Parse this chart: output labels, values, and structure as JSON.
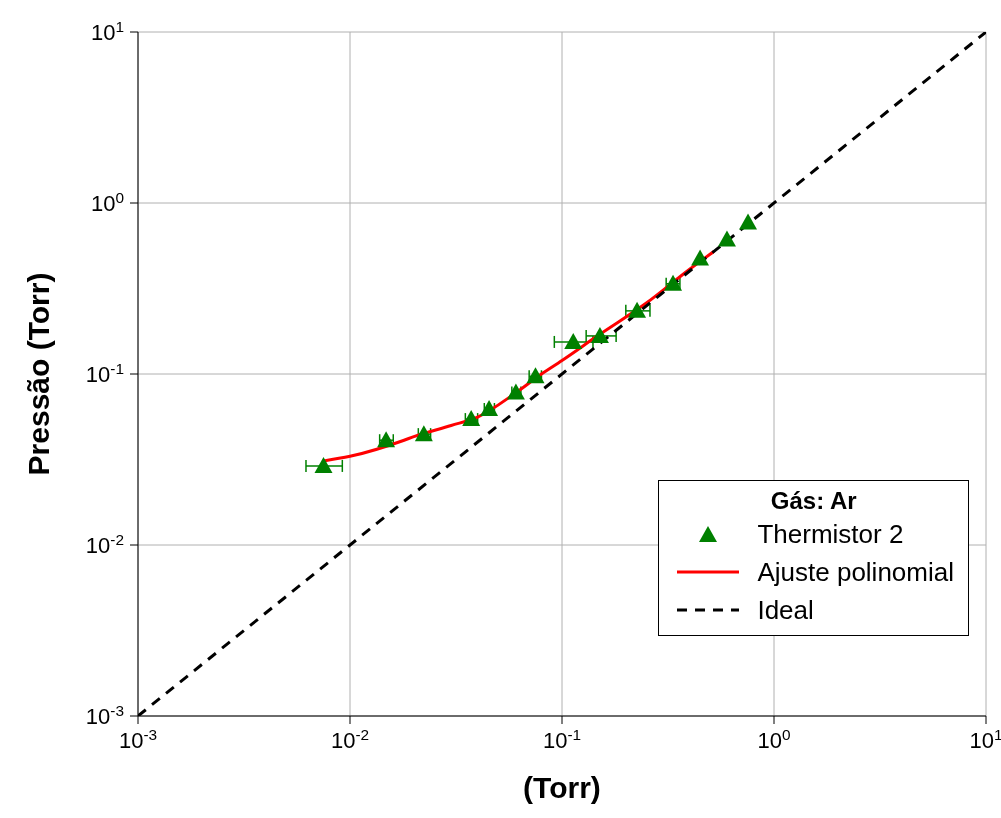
{
  "chart_data": {
    "type": "scatter",
    "xlabel": "(Torr)",
    "ylabel": "Pressão (Torr)",
    "legend_title": "Gás: Ar",
    "log": "xy",
    "grid": true,
    "legend": "bottom right",
    "xlim": [
      0.001,
      10
    ],
    "ylim": [
      0.001,
      10
    ],
    "xticks": [
      {
        "value": 0.001,
        "label": "10$^{-3}$"
      },
      {
        "value": 0.01,
        "label": "10$^{-2}$"
      },
      {
        "value": 0.1,
        "label": "10$^{-1}$"
      },
      {
        "value": 1,
        "label": "10$^{0}$"
      },
      {
        "value": 10,
        "label": "10$^{1}$"
      }
    ],
    "yticks": [
      {
        "value": 0.001,
        "label": "10$^{-3}$"
      },
      {
        "value": 0.01,
        "label": "10$^{-2}$"
      },
      {
        "value": 0.1,
        "label": "10$^{-1}$"
      },
      {
        "value": 1,
        "label": "10$^{0}$"
      },
      {
        "value": 10,
        "label": "10$^{1}$"
      }
    ],
    "series": [
      {
        "name": "Thermistor 2",
        "marker": "triangle",
        "color": "#008000",
        "x": [
          0.0075,
          0.0148,
          0.0223,
          0.0373,
          0.0453,
          0.0606,
          0.075,
          0.113,
          0.151,
          0.226,
          0.334,
          0.448,
          0.6,
          0.754
        ],
        "values": [
          0.029,
          0.041,
          0.0445,
          0.0545,
          0.0624,
          0.078,
          0.097,
          0.154,
          0.167,
          0.234,
          0.337,
          0.473,
          0.611,
          0.769
        ],
        "xerrors": [
          [
            0.0062,
            0.0092
          ],
          [
            0.0138,
            0.016
          ],
          [
            0.021,
            0.024
          ],
          [
            0.035,
            0.04
          ],
          [
            0.043,
            0.048
          ],
          [
            0.058,
            0.064
          ],
          [
            0.07,
            0.08
          ],
          [
            0.092,
            0.14
          ],
          [
            0.13,
            0.18
          ],
          [
            0.2,
            0.26
          ],
          [
            0.31,
            0.36
          ],
          null,
          null,
          null
        ]
      },
      {
        "name": "Ajuste polinomial",
        "type": "line",
        "line_style": "solid",
        "color": "#ff0000",
        "x": [
          0.0075,
          0.01,
          0.018,
          0.02,
          0.03,
          0.04,
          0.06,
          0.08,
          0.1,
          0.15,
          0.25,
          0.4,
          0.52
        ],
        "values": [
          0.031,
          0.033,
          0.041,
          0.043,
          0.05,
          0.056,
          0.077,
          0.1,
          0.12,
          0.17,
          0.26,
          0.41,
          0.52
        ]
      },
      {
        "name": "Ideal",
        "type": "line",
        "line_style": "dashed",
        "color": "#000000",
        "x": [
          0.001,
          10
        ],
        "values": [
          0.001,
          10
        ]
      }
    ]
  }
}
